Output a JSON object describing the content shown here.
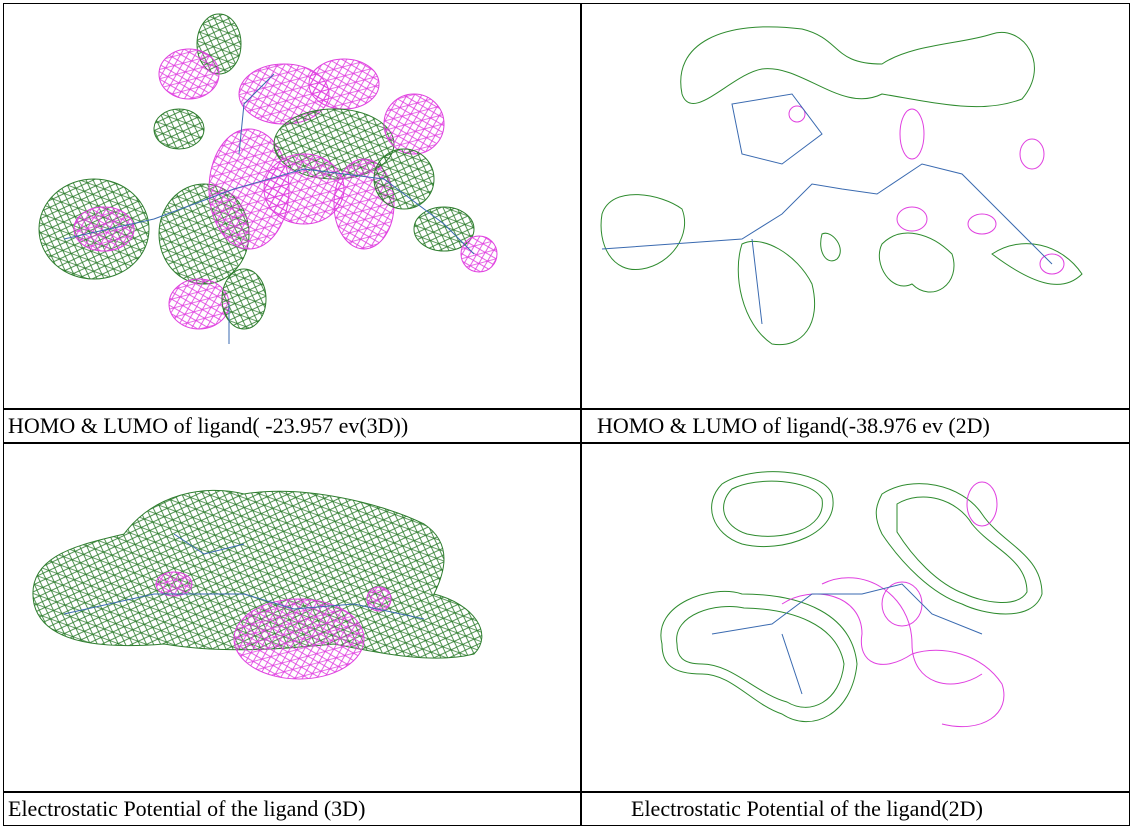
{
  "cells": [
    {
      "caption": "HOMO & LUMO of ligand( -23.957 ev(3D))"
    },
    {
      "caption": "HOMO & LUMO of ligand(-38.976 ev (2D)"
    },
    {
      "caption": "Electrostatic Potential of the ligand (3D)"
    },
    {
      "caption": "Electrostatic Potential of the ligand(2D)"
    }
  ]
}
